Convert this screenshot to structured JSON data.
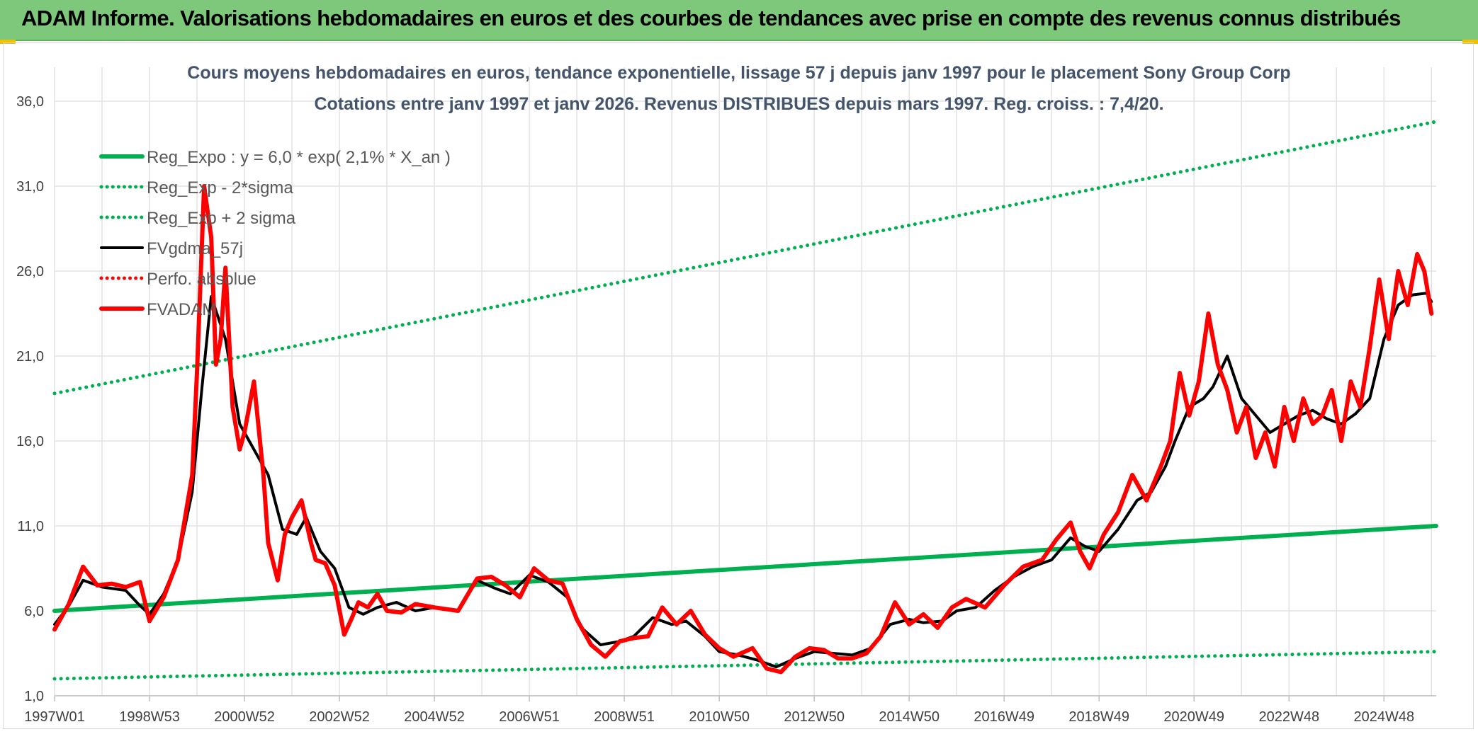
{
  "header": {
    "title": "ADAM Informe. Valorisations hebdomadaires en euros et des courbes de tendances avec prise en compte des revenus connus distribués"
  },
  "colors": {
    "header_bg": "#7dc87a",
    "reg_expo": "#00b050",
    "fvgdma": "#000000",
    "fvadam": "#ff0000",
    "grid": "#e3e3e3"
  },
  "chart_data": {
    "type": "line",
    "title": "Cours moyens hebdomadaires en euros, tendance exponentielle, lissage 57 j depuis janv 1997 pour le placement Sony Group Corp",
    "subtitle": "Cotations entre janv 1997 et janv 2026. Revenus DISTRIBUES depuis mars 1997. Reg. croiss. : 7,4/20.",
    "xlabel": "",
    "ylabel": "",
    "ylim": [
      1,
      38
    ],
    "xlim": [
      1997.0,
      2026.1
    ],
    "y_ticks": [
      "1,0",
      "6,0",
      "11,0",
      "16,0",
      "21,0",
      "26,0",
      "31,0",
      "36,0"
    ],
    "y_tick_values": [
      1,
      6,
      11,
      16,
      21,
      26,
      31,
      36
    ],
    "x_ticks": [
      "1997W01",
      "1998W53",
      "2000W52",
      "2002W52",
      "2004W52",
      "2006W51",
      "2008W51",
      "2010W50",
      "2012W50",
      "2014W50",
      "2016W49",
      "2018W49",
      "2020W49",
      "2022W48",
      "2024W48"
    ],
    "x_tick_years": [
      1997.0,
      1999.0,
      2001.0,
      2003.0,
      2005.0,
      2007.0,
      2009.0,
      2011.0,
      2013.0,
      2015.0,
      2017.0,
      2019.0,
      2021.0,
      2023.0,
      2025.0
    ],
    "legend_position": "top-left",
    "series": [
      {
        "name": "Reg_Expo : y = 6,0 * exp( 2,1% *  X_an )",
        "style": "solid-thick",
        "color": "#00b050",
        "x": [
          1997.0,
          2026.1
        ],
        "y": [
          6.0,
          11.0
        ]
      },
      {
        "name": "Reg_Exp - 2*sigma",
        "style": "dotted",
        "color": "#00b050",
        "x": [
          1997.0,
          2026.1
        ],
        "y": [
          2.0,
          3.6
        ]
      },
      {
        "name": "Reg_Exp + 2 sigma",
        "style": "dotted",
        "color": "#00b050",
        "x": [
          1997.0,
          2026.1
        ],
        "y": [
          18.8,
          34.8
        ]
      },
      {
        "name": "FVgdma_57j",
        "style": "solid",
        "color": "#000000",
        "x": [
          1997.0,
          1997.3,
          1997.6,
          1998.0,
          1998.5,
          1998.8,
          1999.0,
          1999.3,
          1999.6,
          1999.9,
          2000.1,
          2000.3,
          2000.6,
          2000.9,
          2001.2,
          2001.5,
          2001.8,
          2002.1,
          2002.3,
          2002.6,
          2002.9,
          2003.2,
          2003.5,
          2003.8,
          2004.2,
          2004.6,
          2005.0,
          2005.5,
          2005.9,
          2006.3,
          2006.6,
          2007.0,
          2007.4,
          2007.8,
          2008.1,
          2008.5,
          2008.9,
          2009.2,
          2009.6,
          2010.0,
          2010.3,
          2010.7,
          2011.0,
          2011.4,
          2011.8,
          2012.2,
          2012.6,
          2013.0,
          2013.4,
          2013.8,
          2014.2,
          2014.6,
          2015.0,
          2015.3,
          2015.7,
          2016.0,
          2016.4,
          2016.8,
          2017.2,
          2017.6,
          2018.0,
          2018.4,
          2018.7,
          2019.0,
          2019.4,
          2019.8,
          2020.1,
          2020.4,
          2020.6,
          2020.9,
          2021.2,
          2021.4,
          2021.7,
          2022.0,
          2022.3,
          2022.6,
          2022.9,
          2023.2,
          2023.5,
          2023.8,
          2024.1,
          2024.4,
          2024.7,
          2025.0,
          2025.3,
          2025.6,
          2025.9,
          2026.0
        ],
        "y": [
          5.2,
          6.3,
          7.8,
          7.4,
          7.2,
          6.3,
          5.8,
          7.0,
          9.0,
          13.0,
          19.0,
          24.5,
          22.0,
          17.0,
          15.5,
          14.0,
          10.8,
          10.5,
          11.5,
          9.5,
          8.5,
          6.2,
          5.8,
          6.2,
          6.5,
          6.0,
          6.2,
          6.0,
          7.8,
          7.3,
          7.0,
          8.1,
          7.7,
          6.8,
          5.0,
          4.0,
          4.2,
          4.5,
          5.6,
          5.2,
          5.4,
          4.5,
          3.6,
          3.4,
          3.1,
          2.7,
          3.2,
          3.6,
          3.5,
          3.4,
          3.8,
          5.2,
          5.5,
          5.3,
          5.4,
          6.0,
          6.2,
          7.2,
          8.0,
          8.6,
          9.0,
          10.3,
          9.8,
          9.5,
          10.8,
          12.5,
          13.0,
          14.5,
          16.0,
          18.0,
          18.5,
          19.2,
          21.0,
          18.5,
          17.5,
          16.5,
          17.0,
          17.5,
          17.8,
          17.3,
          17.0,
          17.6,
          18.5,
          22.0,
          24.0,
          24.6,
          24.7,
          24.2
        ]
      },
      {
        "name": "Perfo. absolue",
        "style": "dotted",
        "color": "#ff0000",
        "x": [],
        "y": []
      },
      {
        "name": "FVADAM",
        "style": "solid-thick",
        "color": "#ff0000",
        "x": [
          1997.0,
          1997.3,
          1997.6,
          1997.9,
          1998.2,
          1998.5,
          1998.8,
          1999.0,
          1999.3,
          1999.6,
          1999.9,
          2000.0,
          2000.15,
          2000.3,
          2000.4,
          2000.5,
          2000.6,
          2000.75,
          2000.9,
          2001.0,
          2001.2,
          2001.4,
          2001.5,
          2001.7,
          2001.85,
          2002.0,
          2002.2,
          2002.4,
          2002.5,
          2002.7,
          2002.9,
          2003.1,
          2003.25,
          2003.4,
          2003.6,
          2003.8,
          2004.0,
          2004.3,
          2004.6,
          2005.0,
          2005.5,
          2005.9,
          2006.2,
          2006.5,
          2006.8,
          2007.1,
          2007.4,
          2007.7,
          2008.0,
          2008.3,
          2008.6,
          2008.9,
          2009.2,
          2009.5,
          2009.8,
          2010.1,
          2010.4,
          2010.7,
          2011.0,
          2011.3,
          2011.7,
          2012.0,
          2012.3,
          2012.6,
          2012.9,
          2013.2,
          2013.5,
          2013.8,
          2014.1,
          2014.4,
          2014.7,
          2015.0,
          2015.3,
          2015.6,
          2015.9,
          2016.2,
          2016.6,
          2017.0,
          2017.4,
          2017.8,
          2018.1,
          2018.4,
          2018.6,
          2018.8,
          2019.1,
          2019.4,
          2019.7,
          2020.0,
          2020.3,
          2020.5,
          2020.7,
          2020.9,
          2021.1,
          2021.3,
          2021.5,
          2021.7,
          2021.9,
          2022.1,
          2022.3,
          2022.5,
          2022.7,
          2022.9,
          2023.1,
          2023.3,
          2023.5,
          2023.7,
          2023.9,
          2024.1,
          2024.3,
          2024.5,
          2024.7,
          2024.9,
          2025.1,
          2025.3,
          2025.5,
          2025.7,
          2025.85,
          2026.0
        ],
        "y": [
          4.9,
          6.4,
          8.6,
          7.5,
          7.6,
          7.4,
          7.7,
          5.4,
          6.8,
          9.0,
          14.0,
          20.0,
          31.0,
          28.0,
          20.5,
          22.0,
          26.2,
          18.0,
          15.5,
          16.5,
          19.5,
          14.0,
          10.0,
          7.8,
          10.5,
          11.5,
          12.5,
          10.0,
          9.0,
          8.8,
          7.5,
          4.6,
          5.5,
          6.5,
          6.2,
          7.0,
          6.0,
          5.9,
          6.4,
          6.2,
          6.0,
          7.9,
          8.0,
          7.5,
          6.8,
          8.5,
          7.8,
          7.6,
          5.5,
          4.0,
          3.3,
          4.2,
          4.4,
          4.5,
          6.2,
          5.2,
          6.0,
          4.6,
          3.8,
          3.3,
          3.8,
          2.6,
          2.4,
          3.3,
          3.8,
          3.7,
          3.2,
          3.2,
          3.5,
          4.5,
          6.5,
          5.2,
          5.8,
          5.0,
          6.2,
          6.7,
          6.2,
          7.5,
          8.6,
          9.0,
          10.2,
          11.2,
          9.5,
          8.5,
          10.5,
          11.8,
          14.0,
          12.5,
          14.5,
          16.0,
          20.0,
          17.5,
          19.5,
          23.5,
          20.5,
          19.0,
          16.5,
          18.0,
          15.0,
          16.5,
          14.5,
          18.0,
          16.0,
          18.5,
          17.0,
          17.5,
          19.0,
          16.0,
          19.5,
          18.0,
          21.5,
          25.5,
          22.0,
          26.0,
          24.0,
          27.0,
          26.0,
          23.5
        ]
      }
    ]
  }
}
